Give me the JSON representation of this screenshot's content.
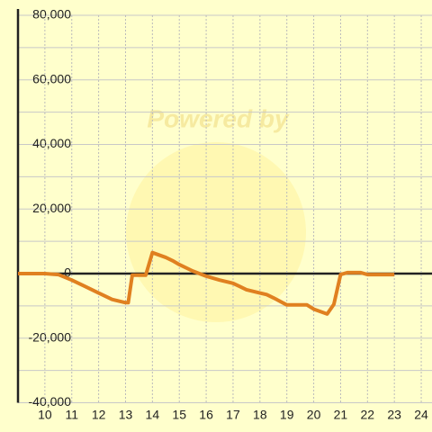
{
  "chart_data": {
    "type": "line",
    "watermark": "Powered by",
    "x": [
      9,
      10,
      10.5,
      11,
      11.5,
      12,
      12.5,
      13,
      13.1,
      13.25,
      13.75,
      14,
      14.5,
      14.75,
      15,
      15.5,
      16,
      16.5,
      17,
      17.25,
      17.5,
      18,
      18.25,
      18.5,
      19,
      19.75,
      20,
      20.5,
      20.75,
      21,
      21.25,
      21.75,
      22,
      23
    ],
    "series": [
      {
        "color": "#e08020",
        "values": [
          0,
          0,
          -300,
          -2000,
          -4000,
          -6000,
          -8000,
          -9000,
          -9000,
          -500,
          -500,
          6500,
          5000,
          4000,
          2800,
          800,
          -800,
          -2000,
          -3000,
          -4000,
          -5000,
          -6000,
          -6500,
          -7500,
          -9700,
          -9700,
          -11000,
          -12500,
          -9500,
          -300,
          300,
          300,
          -300,
          -300
        ]
      }
    ],
    "xlim": [
      9,
      24.4
    ],
    "ylim": [
      -40000,
      80000
    ],
    "xticks": [
      10,
      11,
      12,
      13,
      14,
      15,
      16,
      17,
      18,
      19,
      20,
      21,
      22,
      23,
      24
    ],
    "yticks": [
      {
        "value": -40000,
        "label": "-40,000"
      },
      {
        "value": -20000,
        "label": "-20,000"
      },
      0,
      {
        "value": 20000,
        "label": "20,000"
      },
      {
        "value": 40000,
        "label": "40,000"
      },
      {
        "value": 60000,
        "label": "60,000"
      },
      {
        "value": 80000,
        "label": "80,000"
      }
    ],
    "y_minor_ticks": [
      -30000,
      -10000,
      10000,
      30000,
      50000,
      70000
    ],
    "grid": true
  }
}
